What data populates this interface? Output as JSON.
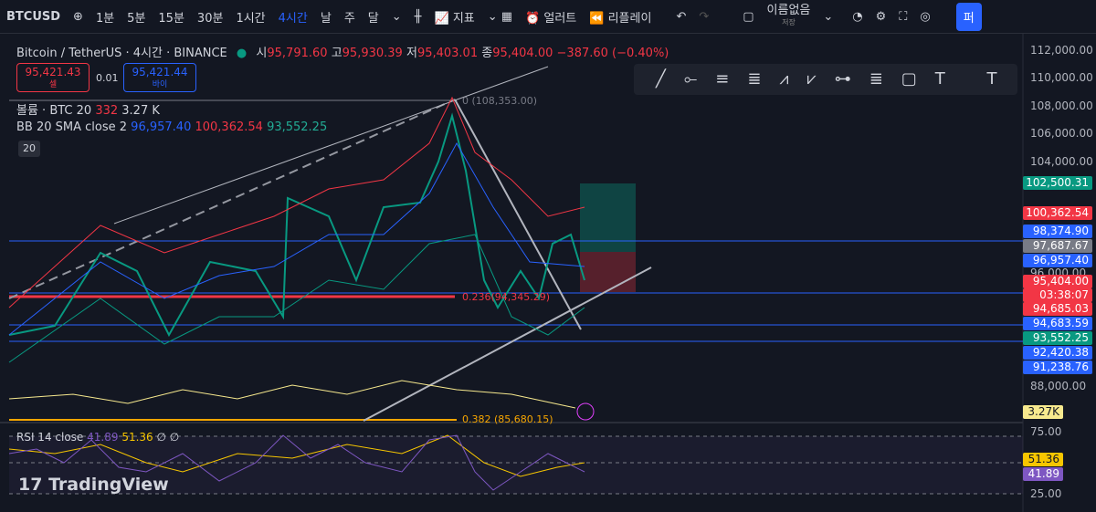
{
  "toolbar": {
    "symbol": "BTCUSD",
    "intervals": [
      "1분",
      "5분",
      "15분",
      "30분",
      "1시간",
      "4시간",
      "날",
      "주",
      "달"
    ],
    "indicators": "지표",
    "alert": "얼러트",
    "replay": "리플레이",
    "layout_name": "이름없음",
    "save": "저장",
    "publish": "퍼"
  },
  "legend": {
    "title": "Bitcoin / TetherUS · 4시간 · BINANCE",
    "open_label": "시",
    "open": "95,791.60",
    "high_label": "고",
    "high": "95,930.39",
    "low_label": "저",
    "low": "95,403.01",
    "close_label": "종",
    "close": "95,404.00",
    "change": "−387.60 (−0.40%)"
  },
  "trade": {
    "sell_price": "95,421.43",
    "sell": "셀",
    "spread": "0.01",
    "buy_price": "95,421.44",
    "buy": "바이"
  },
  "volume": {
    "label": "볼륨 · BTC 20",
    "value1": "332",
    "value2": "3.27 K"
  },
  "bb": {
    "label": "BB 20 SMA close 2",
    "basis": "96,957.40",
    "upper": "100,362.54",
    "lower": "93,552.25",
    "length_box": "20"
  },
  "annotations": [
    "0 (108,353.00)",
    "0.236(94,345.29)",
    "0.382 (85,680.15)"
  ],
  "price_axis": {
    "ticks": [
      "112,000.00",
      "110,000.00",
      "108,000.00",
      "106,000.00",
      "104,000.00",
      "96,000.00",
      "88,000.00"
    ],
    "tags": [
      "102,500.31",
      "100,362.54",
      "98,374.90",
      "97,687.67",
      "96,957.40",
      "95,404.00",
      "03:38:07",
      "94,685.03",
      "94,683.59",
      "93,552.25",
      "92,420.38",
      "91,238.76",
      "3.27K"
    ]
  },
  "rsi": {
    "label": "RSI 14 close",
    "value1": "41.89",
    "value2": "51.36",
    "na1": "∅",
    "na2": "∅",
    "ticks": [
      "75.00",
      "25.00"
    ],
    "tags": [
      "51.36",
      "41.89"
    ]
  },
  "logo": "TradingView"
}
